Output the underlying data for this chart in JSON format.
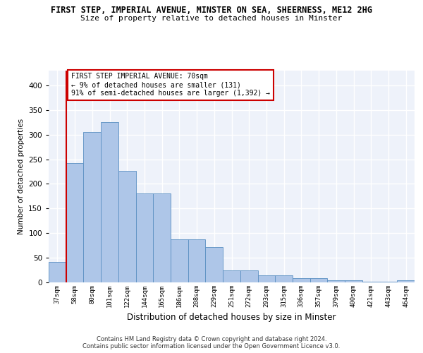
{
  "title1": "FIRST STEP, IMPERIAL AVENUE, MINSTER ON SEA, SHEERNESS, ME12 2HG",
  "title2": "Size of property relative to detached houses in Minster",
  "xlabel": "Distribution of detached houses by size in Minster",
  "ylabel": "Number of detached properties",
  "categories": [
    "37sqm",
    "58sqm",
    "80sqm",
    "101sqm",
    "122sqm",
    "144sqm",
    "165sqm",
    "186sqm",
    "208sqm",
    "229sqm",
    "251sqm",
    "272sqm",
    "293sqm",
    "315sqm",
    "336sqm",
    "357sqm",
    "379sqm",
    "400sqm",
    "421sqm",
    "443sqm",
    "464sqm"
  ],
  "values": [
    42,
    242,
    305,
    325,
    226,
    180,
    180,
    88,
    88,
    72,
    25,
    25,
    15,
    15,
    9,
    9,
    4,
    4,
    2,
    2,
    4
  ],
  "bar_color": "#aec6e8",
  "bar_edge_color": "#5a8fc2",
  "vline_color": "#cc0000",
  "annotation_text": "FIRST STEP IMPERIAL AVENUE: 70sqm\n← 9% of detached houses are smaller (131)\n91% of semi-detached houses are larger (1,392) →",
  "annotation_box_color": "#ffffff",
  "annotation_box_edge": "#cc0000",
  "ylim": [
    0,
    430
  ],
  "yticks": [
    0,
    50,
    100,
    150,
    200,
    250,
    300,
    350,
    400
  ],
  "footer1": "Contains HM Land Registry data © Crown copyright and database right 2024.",
  "footer2": "Contains public sector information licensed under the Open Government Licence v3.0.",
  "bg_color": "#eef2fa",
  "grid_color": "#ffffff"
}
